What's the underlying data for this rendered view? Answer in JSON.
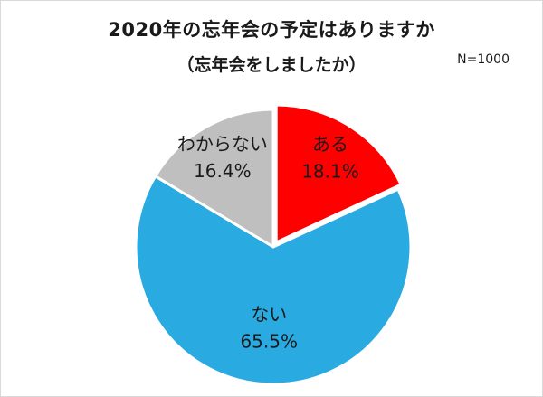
{
  "header": {
    "title": "2020年の忘年会の予定はありますか",
    "subtitle": "（忘年会をしましたか）",
    "sample_label": "N=1000"
  },
  "chart_data": {
    "type": "pie",
    "title": "2020年の忘年会の予定はありますか（忘年会をしましたか）",
    "n": 1000,
    "start_angle_deg": 0,
    "direction": "clockwise",
    "legend_position": "none",
    "labels_inside": true,
    "slices": [
      {
        "key": "aru",
        "label": "ある",
        "value": 18.1,
        "percent_label": "18.1%",
        "color": "#ff0000"
      },
      {
        "key": "nai",
        "label": "ない",
        "value": 65.5,
        "percent_label": "65.5%",
        "color": "#29abe2"
      },
      {
        "key": "wakaranai",
        "label": "わからない",
        "value": 16.4,
        "percent_label": "16.4%",
        "color": "#bfbfbf"
      }
    ]
  }
}
